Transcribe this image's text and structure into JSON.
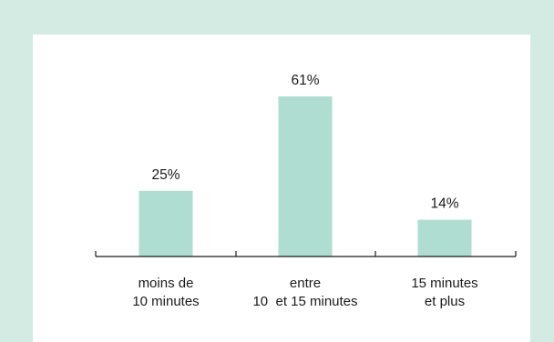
{
  "chart_data": {
    "type": "bar",
    "categories": [
      [
        "moins de",
        "10 minutes"
      ],
      [
        "entre",
        "10  et 15 minutes"
      ],
      [
        "15 minutes",
        "et plus"
      ]
    ],
    "values": [
      25,
      61,
      14
    ],
    "value_labels": [
      "25%",
      "61%",
      "14%"
    ],
    "unit": "%",
    "ylim": [
      0,
      100
    ],
    "grid": false,
    "colors": {
      "bar": "#b0ddd1",
      "background": "#d3ebe2",
      "panel": "#ffffff",
      "axis": "#1a1a1a"
    }
  }
}
